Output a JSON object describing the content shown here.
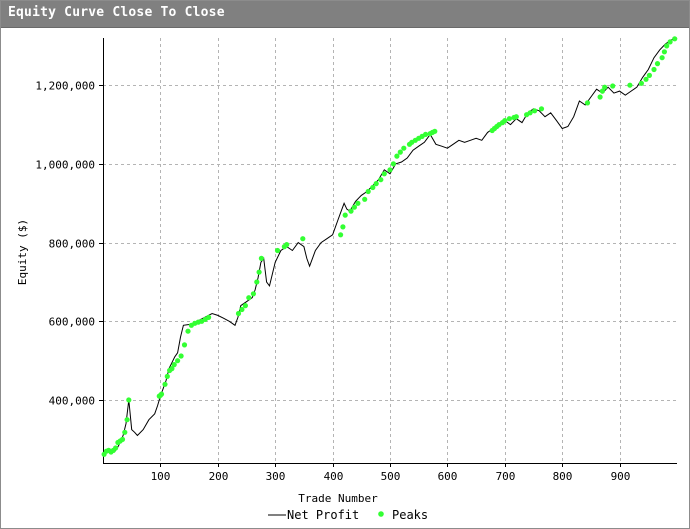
{
  "window": {
    "title": "Equity Curve Close To Close",
    "title_bar_color": "#808080"
  },
  "chart_data": {
    "type": "line",
    "title": "Equity Curve Close To Close",
    "xlabel": "Trade Number",
    "ylabel": "Equity ($)",
    "xlim": [
      0,
      1000
    ],
    "ylim": [
      240000,
      1320000
    ],
    "xticks": [
      100,
      200,
      300,
      400,
      500,
      600,
      700,
      800,
      900
    ],
    "xtick_labels": [
      "100",
      "200",
      "300",
      "400",
      "500",
      "600",
      "700",
      "800",
      "900"
    ],
    "yticks": [
      400000,
      600000,
      800000,
      1000000,
      1200000
    ],
    "ytick_labels": [
      "400,000",
      "600,000",
      "800,000",
      "1,000,000",
      "1,200,000"
    ],
    "grid": true,
    "legend_position": "bottom-center",
    "colors": {
      "line": "#000000",
      "peaks": "#33ff33",
      "grid": "#b4b4b4"
    },
    "series": [
      {
        "name": "Net Profit",
        "x": [
          0,
          10,
          20,
          25,
          30,
          35,
          40,
          45,
          50,
          55,
          60,
          70,
          80,
          90,
          95,
          100,
          105,
          110,
          115,
          120,
          125,
          130,
          135,
          140,
          150,
          160,
          170,
          180,
          190,
          200,
          210,
          220,
          230,
          235,
          240,
          250,
          260,
          265,
          270,
          275,
          280,
          285,
          290,
          300,
          310,
          320,
          330,
          340,
          350,
          355,
          360,
          370,
          380,
          390,
          400,
          410,
          415,
          420,
          425,
          430,
          440,
          450,
          460,
          470,
          480,
          490,
          500,
          510,
          520,
          530,
          540,
          550,
          560,
          570,
          580,
          590,
          600,
          610,
          620,
          630,
          640,
          650,
          660,
          670,
          680,
          690,
          700,
          710,
          720,
          730,
          740,
          750,
          760,
          770,
          780,
          790,
          800,
          810,
          820,
          830,
          840,
          850,
          860,
          870,
          880,
          890,
          900,
          910,
          920,
          930,
          940,
          950,
          960,
          970,
          980,
          990,
          1000
        ],
        "values": [
          265000,
          272000,
          268000,
          278000,
          292000,
          310000,
          340000,
          400000,
          325000,
          318000,
          310000,
          325000,
          350000,
          365000,
          385000,
          410000,
          430000,
          450000,
          480000,
          495000,
          510000,
          520000,
          560000,
          590000,
          592000,
          595000,
          605000,
          612000,
          620000,
          615000,
          608000,
          600000,
          590000,
          610000,
          640000,
          650000,
          660000,
          680000,
          710000,
          750000,
          760000,
          700000,
          690000,
          750000,
          780000,
          790000,
          780000,
          800000,
          790000,
          760000,
          740000,
          780000,
          800000,
          810000,
          820000,
          860000,
          880000,
          900000,
          885000,
          880000,
          905000,
          920000,
          930000,
          945000,
          960000,
          985000,
          975000,
          1000000,
          1005000,
          1015000,
          1035000,
          1045000,
          1055000,
          1075000,
          1050000,
          1045000,
          1040000,
          1050000,
          1060000,
          1055000,
          1060000,
          1065000,
          1060000,
          1080000,
          1090000,
          1100000,
          1110000,
          1100000,
          1115000,
          1105000,
          1130000,
          1140000,
          1135000,
          1120000,
          1130000,
          1110000,
          1090000,
          1095000,
          1120000,
          1160000,
          1150000,
          1170000,
          1190000,
          1180000,
          1195000,
          1180000,
          1185000,
          1175000,
          1185000,
          1195000,
          1220000,
          1240000,
          1270000,
          1290000,
          1305000,
          1315000,
          1320000
        ]
      },
      {
        "name": "Peaks",
        "x": [
          2,
          6,
          10,
          14,
          18,
          22,
          26,
          30,
          34,
          38,
          42,
          45,
          98,
          100,
          102,
          108,
          112,
          116,
          120,
          124,
          130,
          136,
          142,
          148,
          154,
          160,
          166,
          172,
          178,
          184,
          236,
          242,
          248,
          254,
          262,
          268,
          272,
          276,
          304,
          316,
          320,
          348,
          414,
          418,
          422,
          432,
          438,
          444,
          456,
          462,
          470,
          476,
          484,
          490,
          500,
          506,
          512,
          518,
          524,
          534,
          538,
          544,
          550,
          556,
          562,
          570,
          574,
          578,
          678,
          682,
          686,
          690,
          696,
          700,
          708,
          716,
          720,
          738,
          744,
          752,
          764,
          844,
          866,
          870,
          874,
          888,
          918,
          938,
          946,
          952,
          960,
          966,
          974,
          978,
          982,
          988,
          996
        ],
        "values": [
          262000,
          270000,
          272000,
          268000,
          272000,
          278000,
          292000,
          296000,
          300000,
          318000,
          350000,
          400000,
          410000,
          412000,
          415000,
          440000,
          460000,
          475000,
          480000,
          490000,
          500000,
          512000,
          540000,
          575000,
          590000,
          595000,
          598000,
          600000,
          605000,
          610000,
          620000,
          630000,
          640000,
          660000,
          670000,
          700000,
          725000,
          760000,
          780000,
          790000,
          795000,
          810000,
          820000,
          840000,
          870000,
          880000,
          890000,
          900000,
          910000,
          930000,
          940000,
          950000,
          960000,
          975000,
          985000,
          1000000,
          1020000,
          1030000,
          1040000,
          1050000,
          1055000,
          1060000,
          1065000,
          1070000,
          1075000,
          1077000,
          1080000,
          1083000,
          1085000,
          1090000,
          1095000,
          1100000,
          1105000,
          1110000,
          1115000,
          1118000,
          1120000,
          1125000,
          1130000,
          1135000,
          1140000,
          1155000,
          1170000,
          1185000,
          1195000,
          1198000,
          1200000,
          1205000,
          1215000,
          1225000,
          1240000,
          1255000,
          1270000,
          1285000,
          1300000,
          1310000,
          1318000
        ]
      }
    ]
  },
  "legend": {
    "line_label": "Net Profit",
    "peaks_label": "Peaks"
  }
}
